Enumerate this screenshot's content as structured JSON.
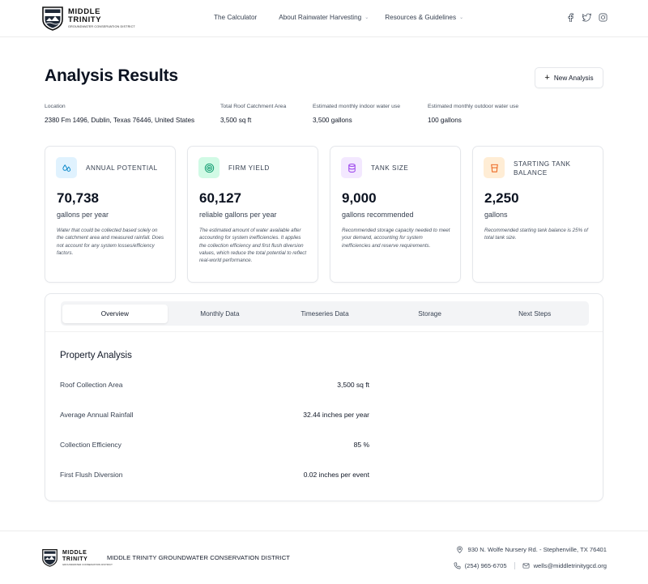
{
  "brand": {
    "line1": "MIDDLE",
    "line2": "TRINITY",
    "line3": "GROUNDWATER CONSERVATION DISTRICT"
  },
  "nav": {
    "calculator": "The Calculator",
    "about": "About Rainwater Harvesting",
    "resources": "Resources & Guidelines"
  },
  "socials": [
    "facebook-icon",
    "twitter-icon",
    "instagram-icon"
  ],
  "page": {
    "title": "Analysis Results",
    "new_analysis": "New Analysis"
  },
  "meta": {
    "location_label": "Location",
    "location_value": "2380 Fm 1496, Dublin, Texas 76446, United States",
    "roof_label": "Total Roof Catchment Area",
    "roof_value": "3,500 sq ft",
    "indoor_label": "Estimated monthly indoor water use",
    "indoor_value": "3,500 gallons",
    "outdoor_label": "Estimated monthly outdoor water use",
    "outdoor_value": "100 gallons"
  },
  "cards": [
    {
      "title": "ANNUAL POTENTIAL",
      "value": "70,738",
      "unit": "gallons per year",
      "desc": "Water that could be collected based solely on the catchment area and measured rainfall. Does not account for any system losses/efficiency factors.",
      "icon": "droplets-icon",
      "color": "#0ea5e9"
    },
    {
      "title": "FIRM YIELD",
      "value": "60,127",
      "unit": "reliable gallons per year",
      "desc": "The estimated amount of water available after accounting for system inefficiencies. It applies the collection efficiency and first flush diversion values, which reduce the total potential to reflect real-world performance.",
      "icon": "target-icon",
      "color": "#10b981"
    },
    {
      "title": "TANK SIZE",
      "value": "9,000",
      "unit": "gallons recommended",
      "desc": "Recommended storage capacity needed to meet your demand, accounting for system inefficiencies and reserve requirements.",
      "icon": "cylinder-icon",
      "color": "#a855f7"
    },
    {
      "title": "STARTING TANK BALANCE",
      "value": "2,250",
      "unit": "gallons",
      "desc": "Recommended starting tank balance is 25% of total tank size.",
      "icon": "cup-icon",
      "color": "#f97316"
    }
  ],
  "tabs": [
    "Overview",
    "Monthly Data",
    "Timeseries Data",
    "Storage",
    "Next Steps"
  ],
  "active_tab": "Overview",
  "analysis": {
    "title": "Property Analysis",
    "rows": [
      {
        "label": "Roof Collection Area",
        "value": "3,500 sq ft"
      },
      {
        "label": "Average Annual Rainfall",
        "value": "32.44 inches per year"
      },
      {
        "label": "Collection Efficiency",
        "value": "85 %"
      },
      {
        "label": "First Flush Diversion",
        "value": "0.02 inches per event"
      }
    ]
  },
  "footer": {
    "district": "MIDDLE TRINITY GROUNDWATER CONSERVATION DISTRICT",
    "address": "930 N. Wolfe Nursery Rd. - Stephenville, TX 76401",
    "phone": "(254) 965-6705",
    "email": "wells@middletrinitygcd.org"
  }
}
